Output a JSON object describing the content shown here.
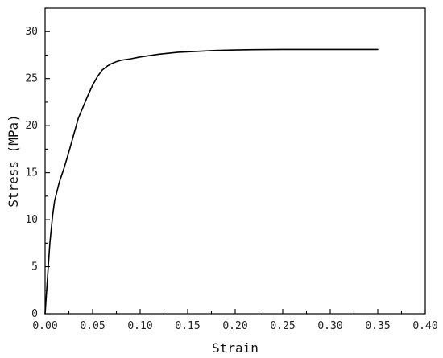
{
  "chart_data": {
    "type": "line",
    "title": "",
    "xlabel": "Strain",
    "ylabel": "Stress (MPa)",
    "xlim": [
      0.0,
      0.4
    ],
    "ylim": [
      0,
      32.5
    ],
    "xticks": [
      "0.00",
      "0.05",
      "0.10",
      "0.15",
      "0.20",
      "0.25",
      "0.30",
      "0.35",
      "0.40"
    ],
    "yticks": [
      "0",
      "5",
      "10",
      "15",
      "20",
      "25",
      "30"
    ],
    "grid": false,
    "legend": "none",
    "line_color": "#000000",
    "series": [
      {
        "x": [
          0.0,
          0.002,
          0.005,
          0.008,
          0.01,
          0.015,
          0.02,
          0.025,
          0.03,
          0.035,
          0.04,
          0.045,
          0.05,
          0.055,
          0.06,
          0.065,
          0.07,
          0.075,
          0.08,
          0.09,
          0.1,
          0.12,
          0.14,
          0.16,
          0.18,
          0.2,
          0.22,
          0.25,
          0.3,
          0.35
        ],
        "y": [
          0.0,
          3.0,
          7.5,
          10.5,
          12.0,
          14.0,
          15.5,
          17.2,
          19.0,
          20.8,
          22.0,
          23.2,
          24.3,
          25.2,
          25.9,
          26.3,
          26.6,
          26.8,
          26.95,
          27.1,
          27.3,
          27.6,
          27.8,
          27.9,
          28.0,
          28.05,
          28.08,
          28.1,
          28.1,
          28.1
        ]
      }
    ]
  }
}
